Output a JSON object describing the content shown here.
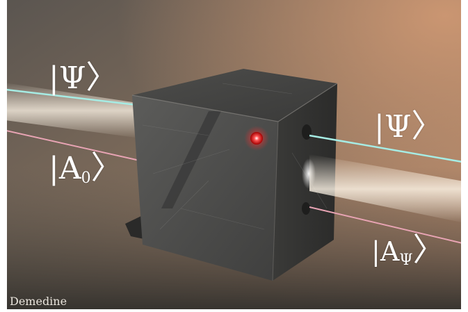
{
  "labels": {
    "psi_left": {
      "bar": "|",
      "symbol": "Ψ",
      "angle": "〉"
    },
    "a0_left": {
      "bar": "|",
      "symbol": "A",
      "sub": "0",
      "angle": "〉"
    },
    "psi_right": {
      "bar": "|",
      "symbol": "Ψ",
      "angle": "〉"
    },
    "apsi_right": {
      "bar": "|",
      "symbol": "A",
      "sub": "Ψ",
      "angle": "〉"
    }
  },
  "credit": "Demedine",
  "colors": {
    "background_top_right": "#c48f6c",
    "background_left": "#5f5a52",
    "floor": "#3b3a36",
    "cube": "#4a4a48",
    "beam_cyan": "#9fe3dc",
    "beam_pink": "#e2a2b0",
    "indicator_red": "#ff2a2a"
  }
}
